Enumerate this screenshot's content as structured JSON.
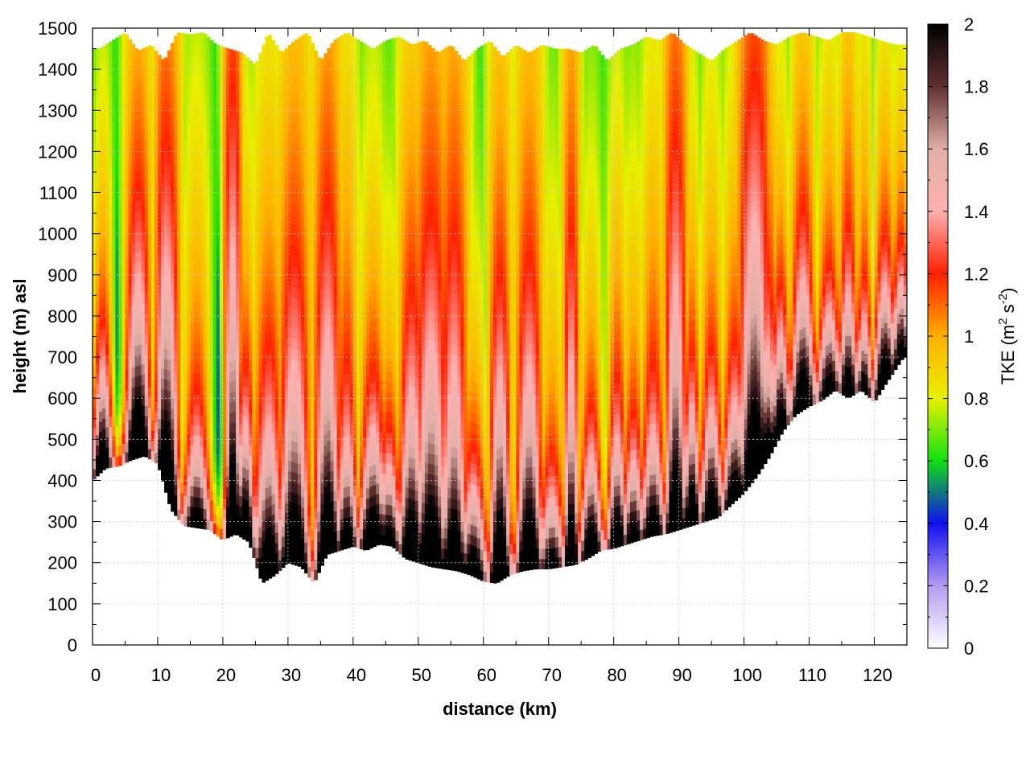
{
  "chart_data": {
    "type": "heatmap",
    "title": "",
    "xlabel": "distance (km)",
    "ylabel": "height (m) asl",
    "xlim": [
      0,
      125
    ],
    "ylim": [
      0,
      1500
    ],
    "x_ticks": [
      0,
      10,
      20,
      30,
      40,
      50,
      60,
      70,
      80,
      90,
      100,
      110,
      120
    ],
    "y_ticks": [
      0,
      100,
      200,
      300,
      400,
      500,
      600,
      700,
      800,
      900,
      1000,
      1100,
      1200,
      1300,
      1400,
      1500
    ],
    "grid": true,
    "colorbar": {
      "label_main": "TKE (m",
      "label_sup1": "2",
      "label_mid": " s",
      "label_sup2": "-2",
      "label_end": ")",
      "range": [
        0,
        2
      ],
      "ticks": [
        "0",
        "0.2",
        "0.4",
        "0.6",
        "0.8",
        "1",
        "1.2",
        "1.4",
        "1.6",
        "1.8",
        "2"
      ],
      "stops": [
        {
          "v": 0.0,
          "c": "#ffffff"
        },
        {
          "v": 0.2,
          "c": "#b49bf0"
        },
        {
          "v": 0.4,
          "c": "#1010f0"
        },
        {
          "v": 0.6,
          "c": "#10e010"
        },
        {
          "v": 0.8,
          "c": "#e8f000"
        },
        {
          "v": 1.0,
          "c": "#ffb000"
        },
        {
          "v": 1.2,
          "c": "#ff2000"
        },
        {
          "v": 1.4,
          "c": "#ffb0b0"
        },
        {
          "v": 1.6,
          "c": "#e0b0a8"
        },
        {
          "v": 1.8,
          "c": "#603030"
        },
        {
          "v": 2.0,
          "c": "#000000"
        }
      ]
    },
    "terrain": {
      "x_km": [
        0,
        2,
        4,
        6,
        8,
        10,
        12,
        14,
        16,
        18,
        20,
        22,
        24,
        26,
        28,
        30,
        32,
        34,
        36,
        38,
        40,
        42,
        44,
        46,
        48,
        50,
        52,
        54,
        56,
        58,
        60,
        62,
        64,
        66,
        68,
        70,
        72,
        74,
        76,
        78,
        80,
        82,
        84,
        86,
        88,
        90,
        92,
        94,
        96,
        98,
        100,
        102,
        104,
        106,
        108,
        110,
        112,
        114,
        116,
        118,
        120,
        122,
        124.5
      ],
      "height_m": [
        400,
        430,
        435,
        450,
        460,
        440,
        330,
        290,
        285,
        280,
        255,
        270,
        250,
        150,
        170,
        200,
        190,
        150,
        220,
        230,
        240,
        230,
        245,
        240,
        210,
        200,
        190,
        185,
        180,
        170,
        155,
        150,
        170,
        180,
        185,
        185,
        190,
        195,
        210,
        230,
        235,
        245,
        255,
        265,
        270,
        280,
        290,
        300,
        310,
        340,
        370,
        410,
        460,
        520,
        560,
        580,
        595,
        620,
        600,
        620,
        590,
        640,
        700
      ]
    },
    "top_km": [
      1,
      3,
      5,
      7,
      9,
      11,
      13,
      15,
      17,
      19,
      21,
      23,
      25,
      27,
      29,
      31,
      33,
      35,
      37,
      39,
      41,
      43,
      45,
      47,
      49,
      51,
      53,
      55,
      57,
      59,
      61,
      63,
      65,
      67,
      69,
      71,
      73,
      75,
      77,
      79,
      81,
      83,
      85,
      87,
      89,
      91,
      93,
      95,
      97,
      99,
      101,
      103,
      105,
      107,
      109,
      111,
      113,
      115,
      117,
      119,
      121,
      123
    ],
    "top_height_m": [
      1450,
      1470,
      1490,
      1445,
      1460,
      1420,
      1490,
      1485,
      1490,
      1460,
      1450,
      1440,
      1410,
      1490,
      1440,
      1470,
      1490,
      1420,
      1470,
      1490,
      1470,
      1450,
      1470,
      1480,
      1460,
      1470,
      1440,
      1460,
      1420,
      1450,
      1470,
      1430,
      1460,
      1440,
      1460,
      1450,
      1450,
      1440,
      1460,
      1420,
      1450,
      1460,
      1480,
      1470,
      1490,
      1460,
      1440,
      1420,
      1450,
      1470,
      1490,
      1470,
      1460,
      1480,
      1490,
      1480,
      1470,
      1490,
      1490,
      1480,
      1470,
      1460
    ],
    "plume_centers_km": [
      1.5,
      7,
      11.5,
      16,
      21.5,
      23.5,
      27,
      31,
      36,
      39,
      43,
      45.5,
      49,
      52,
      55.5,
      58.5,
      62.5,
      67,
      70.5,
      73.5,
      76.5,
      80.5,
      83,
      86,
      89.5,
      92,
      95,
      98.5,
      101.5,
      103.5,
      105.5,
      109,
      113,
      116,
      118.5,
      121.5,
      124
    ],
    "plume_peak_tke": [
      1.6,
      1.9,
      2.0,
      1.4,
      2.0,
      1.7,
      1.8,
      1.9,
      1.9,
      1.5,
      1.7,
      1.4,
      1.8,
      1.9,
      1.8,
      1.5,
      2.0,
      1.9,
      1.3,
      1.8,
      1.6,
      1.6,
      1.4,
      1.5,
      1.9,
      1.7,
      1.6,
      1.5,
      2.0,
      1.5,
      1.6,
      1.7,
      1.4,
      1.5,
      1.3,
      1.6,
      1.4
    ],
    "plume_widths_km": [
      1.6,
      2.0,
      1.8,
      2.2,
      1.2,
      1.6,
      2.2,
      2.4,
      2.0,
      1.8,
      2.2,
      2.0,
      2.0,
      2.4,
      2.0,
      2.2,
      1.6,
      2.0,
      2.2,
      1.2,
      1.8,
      1.6,
      1.8,
      2.0,
      1.6,
      1.4,
      1.8,
      2.0,
      2.2,
      1.8,
      1.6,
      2.0,
      2.0,
      1.6,
      1.4,
      1.8,
      1.6
    ]
  }
}
